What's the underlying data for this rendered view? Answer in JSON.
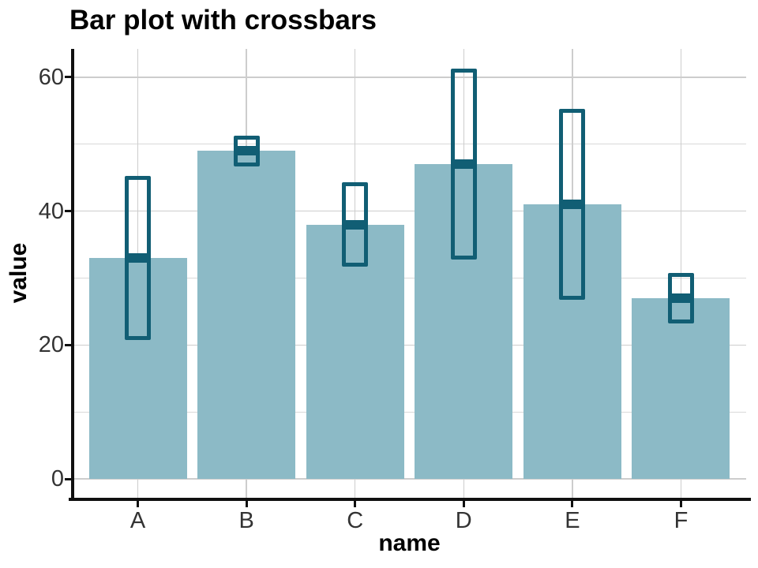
{
  "chart_data": {
    "type": "bar",
    "subtype": "bar with crossbar error boxes",
    "title": "Bar plot with crossbars",
    "xlabel": "name",
    "ylabel": "value",
    "categories": [
      "A",
      "B",
      "C",
      "D",
      "E",
      "F"
    ],
    "series": [
      {
        "name": "value",
        "values": [
          33,
          49,
          38,
          47,
          41,
          27
        ]
      }
    ],
    "crossbars": [
      {
        "category": "A",
        "middle": 33,
        "ymin": 21,
        "ymax": 45
      },
      {
        "category": "B",
        "middle": 49,
        "ymin": 47,
        "ymax": 51
      },
      {
        "category": "C",
        "middle": 38,
        "ymin": 32,
        "ymax": 44
      },
      {
        "category": "D",
        "middle": 47,
        "ymin": 33,
        "ymax": 61
      },
      {
        "category": "E",
        "middle": 41,
        "ymin": 27,
        "ymax": 55
      },
      {
        "category": "F",
        "middle": 27,
        "ymin": 23.5,
        "ymax": 30.5
      }
    ],
    "y_major_ticks": [
      0,
      20,
      40,
      60
    ],
    "y_tick_labels": [
      "0",
      "20",
      "40",
      "60"
    ],
    "y_minor_gridlines": [
      10,
      30,
      50
    ],
    "ylim": [
      0,
      64
    ],
    "grid": "horizontal major+minor; vertical at category centers",
    "legend_position": "none",
    "colors": {
      "bar_fill": "#8cbac6",
      "crossbar_stroke": "#115e74",
      "gridline_major": "#cdcdcd",
      "gridline_minor": "#d9d9d9",
      "axis_line": "#101010",
      "tick_label": "#333333",
      "title": "#000000",
      "background": "#ffffff"
    }
  }
}
